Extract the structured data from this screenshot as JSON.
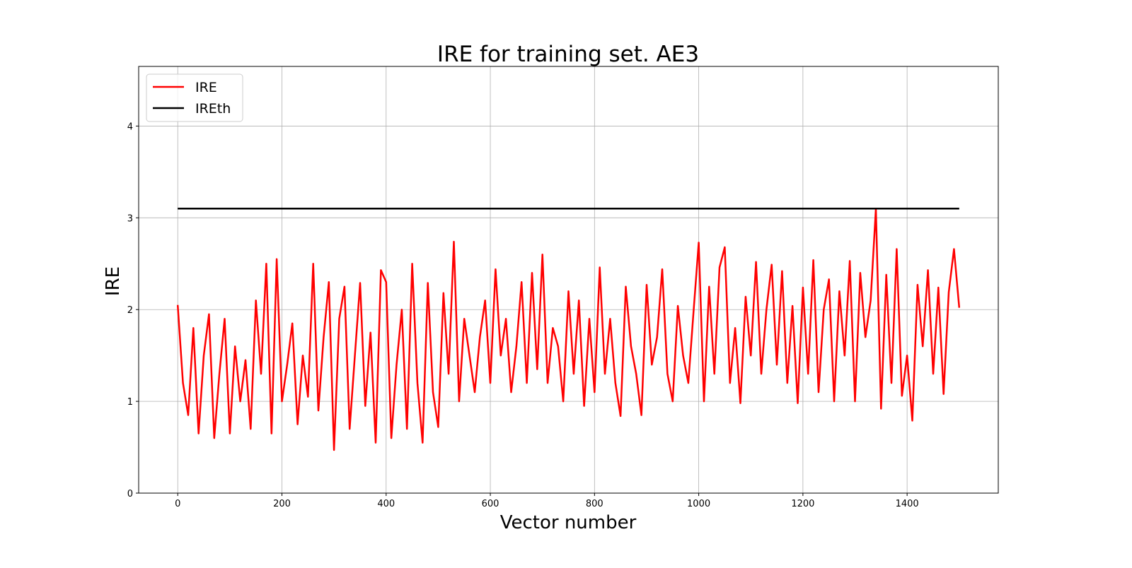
{
  "chart_data": {
    "type": "line",
    "title": "IRE for training set. AE3",
    "xlabel": "Vector number",
    "ylabel": "IRE",
    "xlim": [
      -75,
      1575
    ],
    "ylim": [
      0,
      4.65
    ],
    "xticks": [
      0,
      200,
      400,
      600,
      800,
      1000,
      1200,
      1400
    ],
    "yticks": [
      0,
      1,
      2,
      3,
      4
    ],
    "grid": true,
    "legend_position": "top-left",
    "series": [
      {
        "name": "IRE",
        "color": "#ff0000",
        "x": [
          0,
          10,
          20,
          30,
          40,
          50,
          60,
          70,
          80,
          90,
          100,
          110,
          120,
          130,
          140,
          150,
          160,
          170,
          180,
          190,
          200,
          210,
          220,
          230,
          240,
          250,
          260,
          270,
          280,
          290,
          300,
          310,
          320,
          330,
          340,
          350,
          360,
          370,
          380,
          390,
          400,
          410,
          420,
          430,
          440,
          450,
          460,
          470,
          480,
          490,
          500,
          510,
          520,
          530,
          540,
          550,
          560,
          570,
          580,
          590,
          600,
          610,
          620,
          630,
          640,
          650,
          660,
          670,
          680,
          690,
          700,
          710,
          720,
          730,
          740,
          750,
          760,
          770,
          780,
          790,
          800,
          810,
          820,
          830,
          840,
          850,
          860,
          870,
          880,
          890,
          900,
          910,
          920,
          930,
          940,
          950,
          960,
          970,
          980,
          990,
          1000,
          1010,
          1020,
          1030,
          1040,
          1050,
          1060,
          1070,
          1080,
          1090,
          1100,
          1110,
          1120,
          1130,
          1140,
          1150,
          1160,
          1170,
          1180,
          1190,
          1200,
          1210,
          1220,
          1230,
          1240,
          1250,
          1260,
          1270,
          1280,
          1290,
          1300,
          1310,
          1320,
          1330,
          1340,
          1350,
          1360,
          1370,
          1380,
          1390,
          1400,
          1410,
          1420,
          1430,
          1440,
          1450,
          1460,
          1470,
          1480,
          1490,
          1500
        ],
        "y": [
          2.05,
          1.2,
          0.85,
          1.8,
          0.65,
          1.5,
          1.95,
          0.6,
          1.3,
          1.9,
          0.65,
          1.6,
          1.0,
          1.45,
          0.7,
          2.1,
          1.3,
          2.5,
          0.65,
          2.55,
          1.0,
          1.4,
          1.85,
          0.75,
          1.5,
          1.05,
          2.5,
          0.9,
          1.7,
          2.3,
          0.47,
          1.9,
          2.25,
          0.7,
          1.5,
          2.29,
          0.95,
          1.75,
          0.55,
          2.43,
          2.3,
          0.6,
          1.4,
          2.0,
          0.7,
          2.5,
          1.2,
          0.55,
          2.29,
          1.1,
          0.72,
          2.18,
          1.3,
          2.74,
          1.0,
          1.9,
          1.5,
          1.1,
          1.7,
          2.1,
          1.2,
          2.44,
          1.5,
          1.9,
          1.1,
          1.6,
          2.3,
          1.2,
          2.4,
          1.35,
          2.6,
          1.2,
          1.8,
          1.6,
          1.0,
          2.2,
          1.3,
          2.1,
          0.95,
          1.9,
          1.1,
          2.46,
          1.3,
          1.9,
          1.2,
          0.84,
          2.25,
          1.6,
          1.3,
          0.85,
          2.27,
          1.4,
          1.7,
          2.44,
          1.3,
          1.0,
          2.04,
          1.5,
          1.2,
          1.97,
          2.73,
          1.0,
          2.25,
          1.3,
          2.46,
          2.68,
          1.2,
          1.8,
          0.98,
          2.14,
          1.5,
          2.52,
          1.3,
          2.0,
          2.49,
          1.4,
          2.42,
          1.2,
          2.04,
          0.98,
          2.24,
          1.3,
          2.54,
          1.1,
          2.0,
          2.33,
          1.0,
          2.2,
          1.5,
          2.53,
          1.0,
          2.4,
          1.7,
          2.1,
          3.1,
          0.92,
          2.38,
          1.2,
          2.66,
          1.06,
          1.5,
          0.79,
          2.27,
          1.6,
          2.43,
          1.3,
          2.24,
          1.08,
          2.19,
          2.66,
          2.02
        ]
      },
      {
        "name": "IREth",
        "color": "#000000",
        "x": [
          0,
          1500
        ],
        "y": [
          3.1,
          3.1
        ]
      }
    ]
  }
}
